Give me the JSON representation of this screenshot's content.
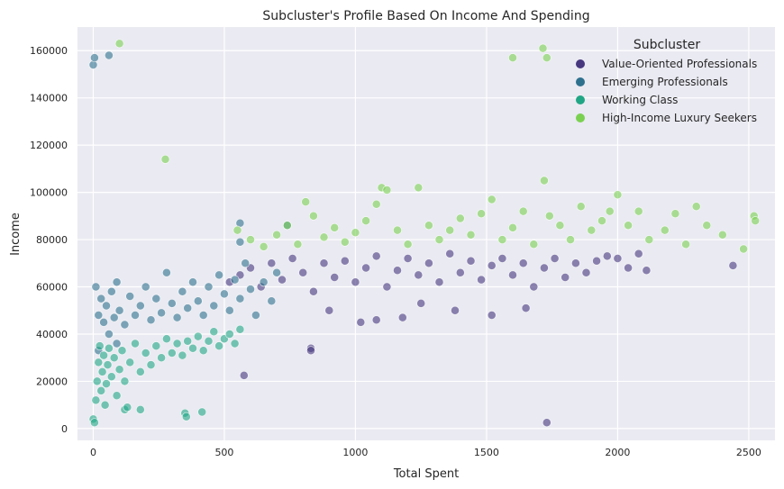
{
  "chart_data": {
    "type": "scatter",
    "title": "Subcluster's Profile Based On Income And Spending",
    "xlabel": "Total Spent",
    "ylabel": "Income",
    "xlim": [
      -60,
      2600
    ],
    "ylim": [
      -5000,
      170000
    ],
    "x_ticks": [
      0,
      500,
      1000,
      1500,
      2000,
      2500
    ],
    "y_ticks": [
      0,
      20000,
      40000,
      60000,
      80000,
      100000,
      120000,
      140000,
      160000
    ],
    "grid": true,
    "legend": {
      "title": "Subcluster",
      "placement": "top-right"
    },
    "series": [
      {
        "name": "Value-Oriented Professionals",
        "color": "#46377f",
        "points": [
          [
            520,
            62000
          ],
          [
            560,
            65000
          ],
          [
            600,
            68000
          ],
          [
            640,
            60000
          ],
          [
            680,
            70000
          ],
          [
            720,
            63000
          ],
          [
            760,
            72000
          ],
          [
            800,
            66000
          ],
          [
            840,
            58000
          ],
          [
            880,
            70000
          ],
          [
            920,
            64000
          ],
          [
            960,
            71000
          ],
          [
            1000,
            62000
          ],
          [
            1040,
            68000
          ],
          [
            1080,
            73000
          ],
          [
            1120,
            60000
          ],
          [
            1160,
            67000
          ],
          [
            1200,
            72000
          ],
          [
            1240,
            65000
          ],
          [
            1280,
            70000
          ],
          [
            1320,
            62000
          ],
          [
            1360,
            74000
          ],
          [
            1400,
            66000
          ],
          [
            1440,
            71000
          ],
          [
            1480,
            63000
          ],
          [
            1520,
            69000
          ],
          [
            1560,
            72000
          ],
          [
            1600,
            65000
          ],
          [
            1640,
            70000
          ],
          [
            1680,
            60000
          ],
          [
            1720,
            68000
          ],
          [
            1760,
            72000
          ],
          [
            1800,
            64000
          ],
          [
            1840,
            70000
          ],
          [
            1880,
            66000
          ],
          [
            1920,
            71000
          ],
          [
            1960,
            73000
          ],
          [
            2000,
            72000
          ],
          [
            2040,
            68000
          ],
          [
            2080,
            74000
          ],
          [
            2110,
            67000
          ],
          [
            2440,
            69000
          ],
          [
            1730,
            2500
          ],
          [
            830,
            34000
          ],
          [
            830,
            33000
          ],
          [
            575,
            22500
          ],
          [
            1080,
            46000
          ],
          [
            1020,
            45000
          ],
          [
            1180,
            47000
          ],
          [
            1520,
            48000
          ],
          [
            1380,
            50000
          ],
          [
            900,
            50000
          ],
          [
            1250,
            53000
          ],
          [
            1650,
            51000
          ]
        ]
      },
      {
        "name": "Emerging Professionals",
        "color": "#2e718e",
        "points": [
          [
            10,
            60000
          ],
          [
            20,
            48000
          ],
          [
            30,
            55000
          ],
          [
            40,
            45000
          ],
          [
            50,
            52000
          ],
          [
            60,
            40000
          ],
          [
            70,
            58000
          ],
          [
            80,
            47000
          ],
          [
            90,
            62000
          ],
          [
            100,
            50000
          ],
          [
            120,
            44000
          ],
          [
            140,
            56000
          ],
          [
            160,
            48000
          ],
          [
            180,
            52000
          ],
          [
            200,
            60000
          ],
          [
            220,
            46000
          ],
          [
            240,
            55000
          ],
          [
            260,
            49000
          ],
          [
            280,
            66000
          ],
          [
            300,
            53000
          ],
          [
            320,
            47000
          ],
          [
            340,
            58000
          ],
          [
            360,
            51000
          ],
          [
            380,
            62000
          ],
          [
            400,
            54000
          ],
          [
            420,
            48000
          ],
          [
            440,
            60000
          ],
          [
            460,
            52000
          ],
          [
            480,
            65000
          ],
          [
            500,
            57000
          ],
          [
            520,
            50000
          ],
          [
            540,
            63000
          ],
          [
            560,
            55000
          ],
          [
            580,
            70000
          ],
          [
            600,
            59000
          ],
          [
            620,
            48000
          ],
          [
            650,
            62000
          ],
          [
            680,
            54000
          ],
          [
            700,
            66000
          ],
          [
            740,
            86000
          ],
          [
            560,
            87000
          ],
          [
            560,
            79000
          ],
          [
            0,
            154000
          ],
          [
            5,
            157000
          ],
          [
            60,
            158000
          ],
          [
            20,
            33000
          ],
          [
            90,
            36000
          ]
        ]
      },
      {
        "name": "Working Class",
        "color": "#21a685",
        "points": [
          [
            0,
            4000
          ],
          [
            5,
            2500
          ],
          [
            10,
            12000
          ],
          [
            15,
            20000
          ],
          [
            20,
            28000
          ],
          [
            25,
            35000
          ],
          [
            30,
            16000
          ],
          [
            35,
            24000
          ],
          [
            40,
            31000
          ],
          [
            45,
            10000
          ],
          [
            50,
            19000
          ],
          [
            55,
            27000
          ],
          [
            60,
            34000
          ],
          [
            70,
            22000
          ],
          [
            80,
            30000
          ],
          [
            90,
            14000
          ],
          [
            100,
            25000
          ],
          [
            110,
            33000
          ],
          [
            120,
            20000
          ],
          [
            140,
            28000
          ],
          [
            160,
            36000
          ],
          [
            180,
            24000
          ],
          [
            200,
            32000
          ],
          [
            220,
            27000
          ],
          [
            240,
            35000
          ],
          [
            260,
            30000
          ],
          [
            280,
            38000
          ],
          [
            300,
            32000
          ],
          [
            320,
            36000
          ],
          [
            340,
            31000
          ],
          [
            360,
            37000
          ],
          [
            380,
            34000
          ],
          [
            400,
            39000
          ],
          [
            420,
            33000
          ],
          [
            440,
            37000
          ],
          [
            460,
            41000
          ],
          [
            480,
            35000
          ],
          [
            500,
            38000
          ],
          [
            520,
            40000
          ],
          [
            540,
            36000
          ],
          [
            560,
            42000
          ],
          [
            350,
            6500
          ],
          [
            355,
            5000
          ],
          [
            415,
            7000
          ],
          [
            120,
            8000
          ],
          [
            130,
            9000
          ],
          [
            180,
            8000
          ]
        ]
      },
      {
        "name": "High-Income Luxury Seekers",
        "color": "#7ad151",
        "points": [
          [
            550,
            84000
          ],
          [
            600,
            80000
          ],
          [
            650,
            77000
          ],
          [
            700,
            82000
          ],
          [
            740,
            86000
          ],
          [
            780,
            78000
          ],
          [
            810,
            96000
          ],
          [
            840,
            90000
          ],
          [
            880,
            81000
          ],
          [
            920,
            85000
          ],
          [
            960,
            79000
          ],
          [
            1000,
            83000
          ],
          [
            1040,
            88000
          ],
          [
            1080,
            95000
          ],
          [
            1100,
            102000
          ],
          [
            1120,
            101000
          ],
          [
            1160,
            84000
          ],
          [
            1200,
            78000
          ],
          [
            1240,
            102000
          ],
          [
            1280,
            86000
          ],
          [
            1320,
            80000
          ],
          [
            1360,
            84000
          ],
          [
            1400,
            89000
          ],
          [
            1440,
            82000
          ],
          [
            1480,
            91000
          ],
          [
            1520,
            97000
          ],
          [
            1560,
            80000
          ],
          [
            1600,
            85000
          ],
          [
            1640,
            92000
          ],
          [
            1680,
            78000
          ],
          [
            1720,
            105000
          ],
          [
            1740,
            90000
          ],
          [
            1780,
            86000
          ],
          [
            1820,
            80000
          ],
          [
            1860,
            94000
          ],
          [
            1900,
            84000
          ],
          [
            1940,
            88000
          ],
          [
            1970,
            92000
          ],
          [
            2000,
            99000
          ],
          [
            2040,
            86000
          ],
          [
            2080,
            92000
          ],
          [
            2120,
            80000
          ],
          [
            2180,
            84000
          ],
          [
            2220,
            91000
          ],
          [
            2260,
            78000
          ],
          [
            2300,
            94000
          ],
          [
            2340,
            86000
          ],
          [
            2400,
            82000
          ],
          [
            2480,
            76000
          ],
          [
            2520,
            90000
          ],
          [
            2525,
            88000
          ],
          [
            1600,
            157000
          ],
          [
            1715,
            161000
          ],
          [
            1730,
            157000
          ],
          [
            100,
            163000
          ],
          [
            275,
            114000
          ]
        ]
      }
    ]
  }
}
